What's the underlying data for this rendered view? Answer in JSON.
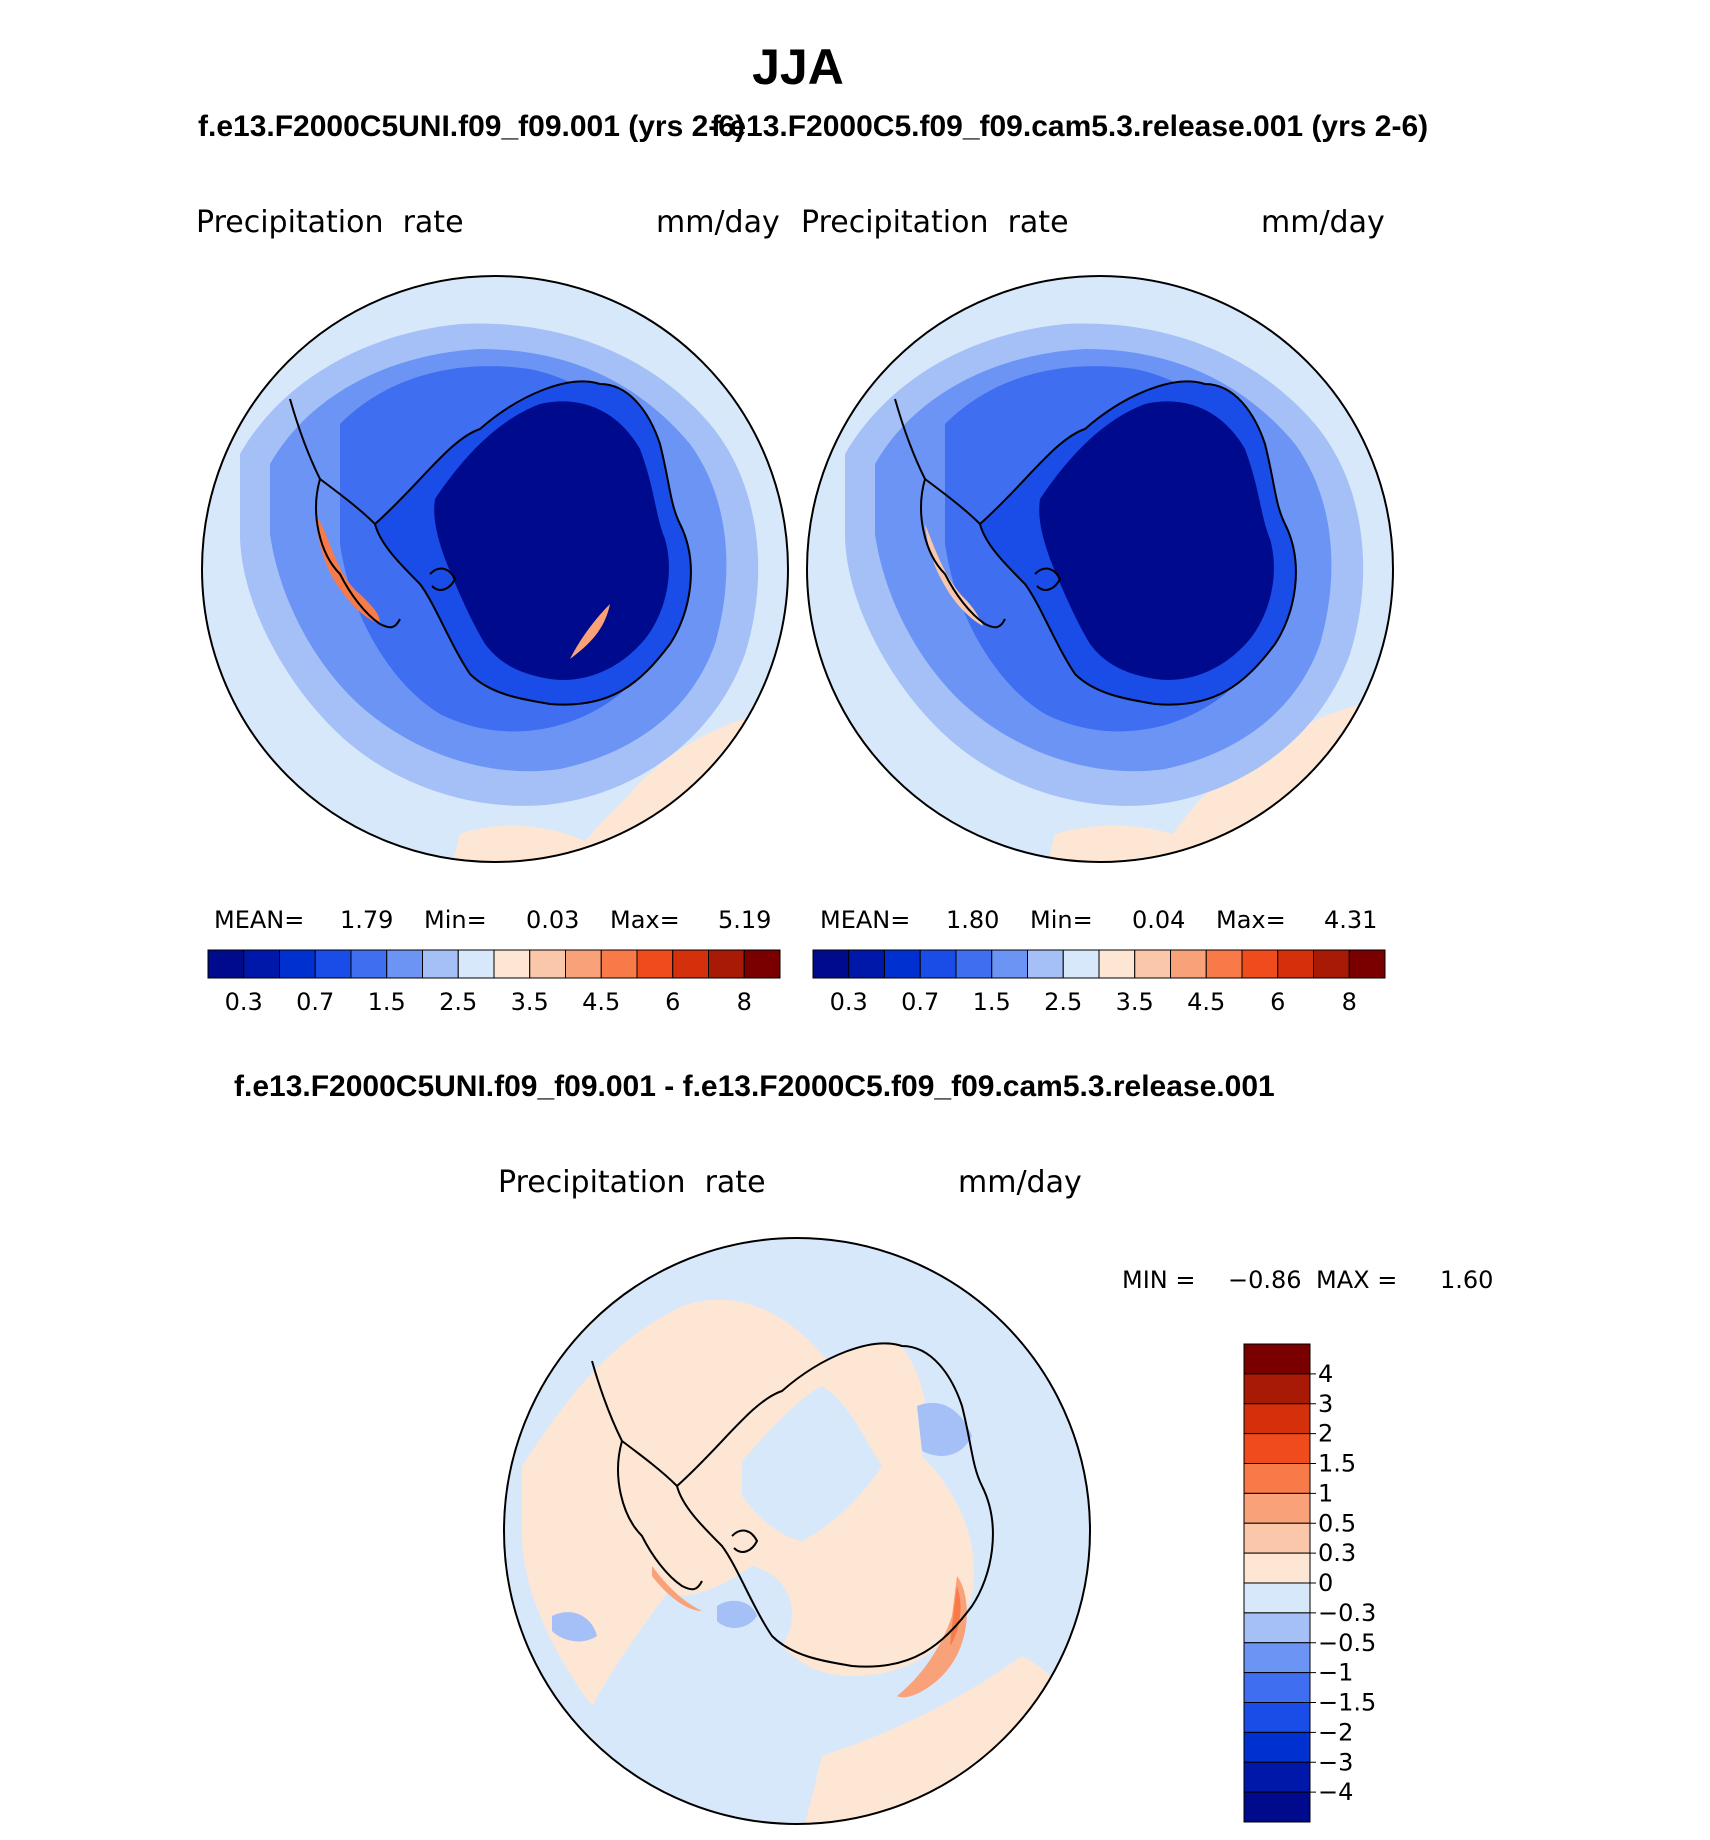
{
  "chart_data": [
    {
      "type": "map-contour",
      "projection": "south-polar-stereographic",
      "season": "JJA",
      "case": "f.e13.F2000C5UNI.f09_f09.001 (yrs 2-6)",
      "variable": "Precipitation  rate",
      "units": "mm/day",
      "stats": [
        {
          "label": "MEAN=",
          "value": "1.79"
        },
        {
          "label": "Min=",
          "value": "0.03"
        },
        {
          "label": "Max=",
          "value": "5.19"
        }
      ],
      "colorbar": {
        "orientation": "horizontal",
        "levels": [
          "0.2",
          "0.3",
          "0.5",
          "0.7",
          "1",
          "1.5",
          "2",
          "2.5",
          "3",
          "3.5",
          "4",
          "4.5",
          "5",
          "6",
          "7",
          "8"
        ],
        "labels": [
          "0.3",
          "0.7",
          "1.5",
          "2.5",
          "3.5",
          "4.5",
          "6",
          "8"
        ]
      }
    },
    {
      "type": "map-contour",
      "projection": "south-polar-stereographic",
      "season": "JJA",
      "case": "f.e13.F2000C5.f09_f09.cam5.3.release.001 (yrs 2-6)",
      "variable": "Precipitation  rate",
      "units": "mm/day",
      "stats": [
        {
          "label": "MEAN=",
          "value": "1.80"
        },
        {
          "label": "Min=",
          "value": "0.04"
        },
        {
          "label": "Max=",
          "value": "4.31"
        }
      ],
      "colorbar": {
        "orientation": "horizontal",
        "levels": [
          "0.2",
          "0.3",
          "0.5",
          "0.7",
          "1",
          "1.5",
          "2",
          "2.5",
          "3",
          "3.5",
          "4",
          "4.5",
          "5",
          "6",
          "7",
          "8"
        ],
        "labels": [
          "0.3",
          "0.7",
          "1.5",
          "2.5",
          "3.5",
          "4.5",
          "6",
          "8"
        ]
      }
    },
    {
      "type": "map-contour-difference",
      "projection": "south-polar-stereographic",
      "season": "JJA",
      "case": "f.e13.F2000C5UNI.f09_f09.001 - f.e13.F2000C5.f09_f09.cam5.3.release.001",
      "variable": "Precipitation  rate",
      "units": "mm/day",
      "stats": [
        {
          "label": "MIN =",
          "value": "−0.86"
        },
        {
          "label": "MAX =",
          "value": "1.60"
        }
      ],
      "colorbar": {
        "orientation": "vertical",
        "labels_top_to_bottom": [
          "4",
          "3",
          "2",
          "1.5",
          "1",
          "0.5",
          "0.3",
          "0",
          "−0.3",
          "−0.5",
          "−1",
          "−1.5",
          "−2",
          "−3",
          "−4"
        ]
      }
    }
  ],
  "page": {
    "title": "JJA",
    "case1_title": "f.e13.F2000C5UNI.f09_f09.001 (yrs 2-6)",
    "case2_title": "f.e13.F2000C5.f09_f09.cam5.3.release.001 (yrs 2-6)",
    "diff_title": "f.e13.F2000C5UNI.f09_f09.001 - f.e13.F2000C5.f09_f09.cam5.3.release.001"
  },
  "colors": {
    "abs_palette": [
      "#000a8c",
      "#0018aa",
      "#0030d0",
      "#1a4de8",
      "#3f6ef0",
      "#6b94f5",
      "#a4c0f7",
      "#d8e8fb",
      "#fde6d4",
      "#fbc7aa",
      "#f9a27a",
      "#f77a48",
      "#f04b1c",
      "#d4300c",
      "#a81a05",
      "#7a0000"
    ],
    "diff_palette_top_to_bottom": [
      "#7a0000",
      "#a81a05",
      "#d4300c",
      "#f04b1c",
      "#f77a48",
      "#f9a27a",
      "#fbc7aa",
      "#fde6d4",
      "#d8e8fb",
      "#a4c0f7",
      "#6b94f5",
      "#3f6ef0",
      "#1a4de8",
      "#0030d0",
      "#0018aa",
      "#000a8c"
    ]
  }
}
